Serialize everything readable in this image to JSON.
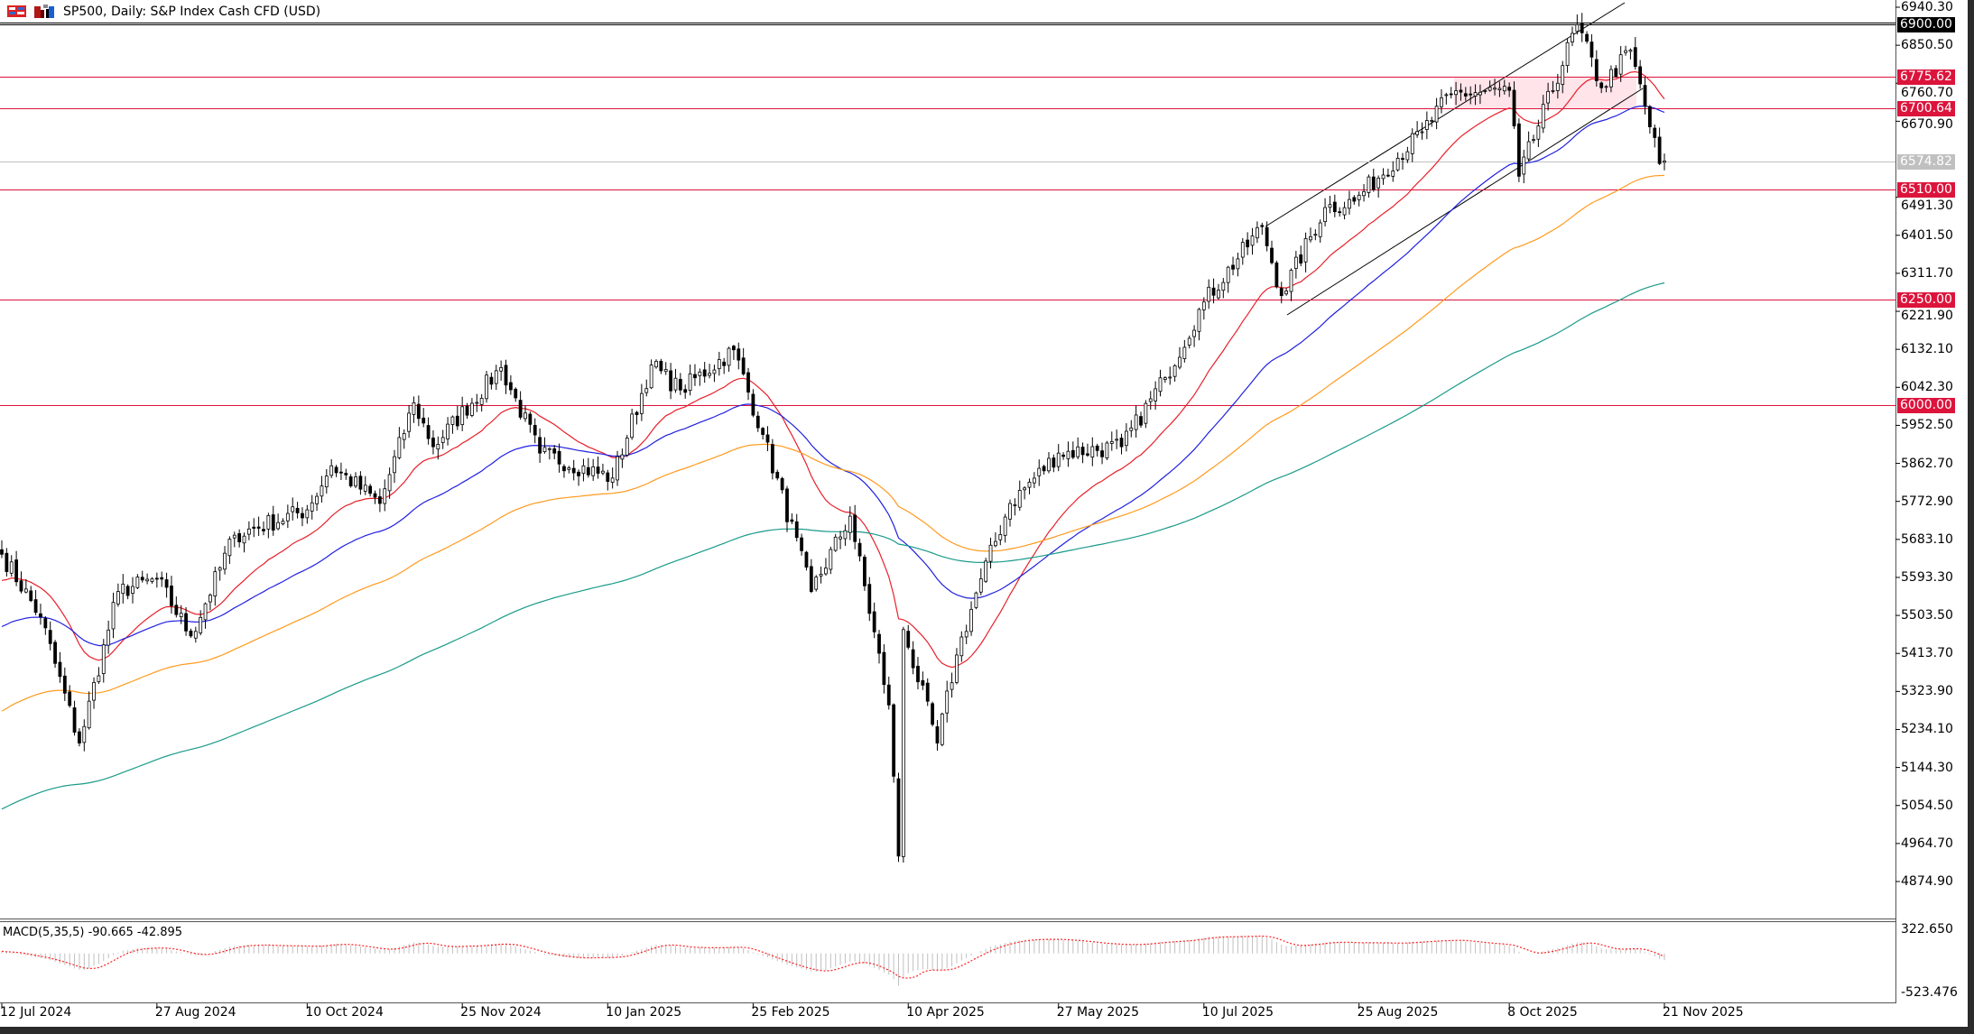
{
  "header": {
    "title": "SP500, Daily:  S&P Index Cash CFD (USD)",
    "icons": [
      "chart-grid-icon",
      "chart-bars-icon"
    ]
  },
  "colors": {
    "level_line": "#dc143c",
    "current_price": "#c0c0c0",
    "ma_fast": "#e8202a",
    "ma_mid": "#2020e0",
    "ma_slow": "#ff9a1e",
    "ma_long": "#1a9a8a",
    "macd_hist": "#c0c0c0",
    "macd_signal": "#ff2020"
  },
  "chart_data": {
    "type": "candlestick",
    "symbol": "SP500",
    "timeframe": "Daily",
    "ylim": [
      4874.9,
      6940.3
    ],
    "grid": false,
    "y_ticks": [
      "6940.30",
      "6850.50",
      "6760.70",
      "6670.90",
      "6491.30",
      "6401.50",
      "6311.70",
      "6221.90",
      "6132.10",
      "6042.30",
      "5952.50",
      "5862.70",
      "5772.90",
      "5683.10",
      "5593.30",
      "5503.50",
      "5413.70",
      "5323.90",
      "5234.10",
      "5144.30",
      "5054.50",
      "4964.70",
      "4874.90"
    ],
    "x_ticks": [
      {
        "date": "2024-07-12",
        "label": "12 Jul 2024"
      },
      {
        "date": "2024-08-27",
        "label": "27 Aug 2024"
      },
      {
        "date": "2024-10-10",
        "label": "10 Oct 2024"
      },
      {
        "date": "2024-11-25",
        "label": "25 Nov 2024"
      },
      {
        "date": "2025-01-10",
        "label": "10 Jan 2025"
      },
      {
        "date": "2025-02-25",
        "label": "25 Feb 2025"
      },
      {
        "date": "2025-04-10",
        "label": "10 Apr 2025"
      },
      {
        "date": "2025-05-27",
        "label": "27 May 2025"
      },
      {
        "date": "2025-07-10",
        "label": "10 Jul 2025"
      },
      {
        "date": "2025-08-25",
        "label": "25 Aug 2025"
      },
      {
        "date": "2025-10-08",
        "label": "8 Oct 2025"
      },
      {
        "date": "2025-11-21",
        "label": "21 Nov 2025"
      }
    ],
    "approx_closes": [
      [
        "2024-07-12",
        5648
      ],
      [
        "2024-07-24",
        5500
      ],
      [
        "2024-08-05",
        5202
      ],
      [
        "2024-08-15",
        5560
      ],
      [
        "2024-08-27",
        5590
      ],
      [
        "2024-09-06",
        5455
      ],
      [
        "2024-09-19",
        5693
      ],
      [
        "2024-10-10",
        5753
      ],
      [
        "2024-10-17",
        5857
      ],
      [
        "2024-10-31",
        5768
      ],
      [
        "2024-11-11",
        6006
      ],
      [
        "2024-11-15",
        5902
      ],
      [
        "2024-12-06",
        6089
      ],
      [
        "2024-12-18",
        5887
      ],
      [
        "2025-01-13",
        5828
      ],
      [
        "2025-01-24",
        6095
      ],
      [
        "2025-02-03",
        6036
      ],
      [
        "2025-02-19",
        6131
      ],
      [
        "2025-02-27",
        5931
      ],
      [
        "2025-03-13",
        5560
      ],
      [
        "2025-03-25",
        5738
      ],
      [
        "2025-04-04",
        5292
      ],
      [
        "2025-04-08",
        4935
      ],
      [
        "2025-04-09",
        5470
      ],
      [
        "2025-04-21",
        5202
      ],
      [
        "2025-04-25",
        5410
      ],
      [
        "2025-05-02",
        5590
      ],
      [
        "2025-05-12",
        5768
      ],
      [
        "2025-05-27",
        5887
      ],
      [
        "2025-06-13",
        5902
      ],
      [
        "2025-06-27",
        6065
      ],
      [
        "2025-07-10",
        6244
      ],
      [
        "2025-07-28",
        6422
      ],
      [
        "2025-08-01",
        6259
      ],
      [
        "2025-08-14",
        6467
      ],
      [
        "2025-08-22",
        6482
      ],
      [
        "2025-09-12",
        6646
      ],
      [
        "2025-09-22",
        6735
      ],
      [
        "2025-10-08",
        6744
      ],
      [
        "2025-10-10",
        6541
      ],
      [
        "2025-10-28",
        6899
      ],
      [
        "2025-11-04",
        6750
      ],
      [
        "2025-11-12",
        6839
      ],
      [
        "2025-11-20",
        6571
      ],
      [
        "2025-11-21",
        6577
      ]
    ],
    "moving_averages": [
      "ma_fast",
      "ma_mid",
      "ma_slow",
      "ma_long"
    ],
    "levels": [
      {
        "value": "6900.00",
        "style": "black"
      },
      {
        "value": "6775.62",
        "style": "red"
      },
      {
        "value": "6700.64",
        "style": "red"
      },
      {
        "value": "6574.82",
        "style": "current"
      },
      {
        "value": "6510.00",
        "style": "red"
      },
      {
        "value": "6250.00",
        "style": "red"
      },
      {
        "value": "6000.00",
        "style": "red"
      }
    ],
    "macd": {
      "label": "MACD(5,35,5) -90.665 -42.895",
      "ylim": [
        -523.476,
        322.65
      ],
      "y_ticks": [
        "322.650",
        "-523.476"
      ]
    }
  }
}
